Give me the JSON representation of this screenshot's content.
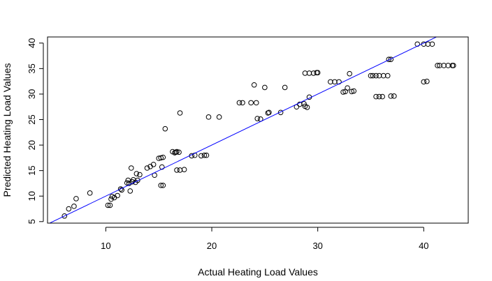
{
  "chart_data": {
    "type": "scatter",
    "title": "",
    "xlabel": "Actual Heating Load Values",
    "ylabel": "Predicted Heating Load Values",
    "xlim": [
      4.5,
      44.2
    ],
    "ylim": [
      4.7,
      41.2
    ],
    "xticks": [
      10,
      20,
      30,
      40
    ],
    "yticks": [
      5,
      10,
      15,
      20,
      25,
      30,
      35,
      40
    ],
    "xtick_labels": [
      "10",
      "20",
      "30",
      "40"
    ],
    "ytick_labels": [
      "5",
      "10",
      "15",
      "20",
      "25",
      "30",
      "35",
      "40"
    ],
    "grid": false,
    "marker": "open-circle",
    "point_color": "#000000",
    "reference_line": {
      "type": "y=x",
      "color": "#0000ff"
    },
    "series": [
      {
        "points": [
          [
            6.1,
            6.1
          ],
          [
            6.5,
            7.5
          ],
          [
            7.0,
            8.0
          ],
          [
            7.2,
            9.5
          ],
          [
            8.5,
            10.6
          ],
          [
            10.2,
            8.2
          ],
          [
            10.4,
            8.2
          ],
          [
            10.5,
            9.4
          ],
          [
            10.6,
            9.9
          ],
          [
            10.8,
            9.7
          ],
          [
            11.1,
            10.1
          ],
          [
            11.4,
            11.4
          ],
          [
            11.5,
            11.2
          ],
          [
            12.0,
            12.6
          ],
          [
            12.1,
            13.1
          ],
          [
            12.2,
            12.5
          ],
          [
            12.3,
            11.0
          ],
          [
            12.4,
            15.5
          ],
          [
            12.5,
            12.8
          ],
          [
            12.6,
            13.2
          ],
          [
            12.8,
            12.7
          ],
          [
            12.9,
            14.4
          ],
          [
            13.0,
            13.1
          ],
          [
            13.2,
            14.2
          ],
          [
            13.9,
            15.5
          ],
          [
            14.2,
            15.8
          ],
          [
            14.5,
            16.2
          ],
          [
            14.6,
            14.1
          ],
          [
            15.0,
            17.4
          ],
          [
            15.2,
            17.5
          ],
          [
            15.3,
            15.7
          ],
          [
            15.4,
            17.6
          ],
          [
            15.2,
            12.1
          ],
          [
            15.4,
            12.1
          ],
          [
            15.6,
            23.2
          ],
          [
            16.3,
            18.7
          ],
          [
            16.5,
            18.5
          ],
          [
            16.6,
            18.6
          ],
          [
            16.7,
            18.7
          ],
          [
            16.9,
            18.6
          ],
          [
            16.7,
            15.1
          ],
          [
            17.0,
            15.1
          ],
          [
            17.4,
            15.2
          ],
          [
            17.0,
            26.3
          ],
          [
            18.1,
            17.9
          ],
          [
            18.4,
            18.0
          ],
          [
            19.0,
            17.9
          ],
          [
            19.3,
            18.0
          ],
          [
            19.5,
            18.0
          ],
          [
            19.7,
            25.5
          ],
          [
            20.7,
            25.5
          ],
          [
            22.6,
            28.3
          ],
          [
            22.9,
            28.3
          ],
          [
            23.7,
            28.3
          ],
          [
            24.2,
            28.3
          ],
          [
            24.0,
            31.8
          ],
          [
            24.3,
            25.2
          ],
          [
            24.6,
            25.1
          ],
          [
            25.0,
            31.3
          ],
          [
            25.3,
            26.3
          ],
          [
            25.4,
            26.4
          ],
          [
            26.5,
            26.4
          ],
          [
            26.9,
            31.3
          ],
          [
            28.0,
            27.5
          ],
          [
            28.3,
            28.0
          ],
          [
            28.7,
            28.1
          ],
          [
            28.8,
            27.6
          ],
          [
            29.0,
            27.4
          ],
          [
            29.2,
            29.4
          ],
          [
            28.8,
            34.1
          ],
          [
            29.2,
            34.1
          ],
          [
            29.6,
            34.1
          ],
          [
            29.9,
            34.2
          ],
          [
            30.0,
            34.2
          ],
          [
            31.2,
            32.4
          ],
          [
            31.6,
            32.4
          ],
          [
            32.0,
            32.4
          ],
          [
            32.4,
            30.4
          ],
          [
            32.6,
            30.5
          ],
          [
            32.8,
            31.2
          ],
          [
            33.0,
            34.0
          ],
          [
            33.2,
            30.5
          ],
          [
            33.4,
            30.6
          ],
          [
            35.0,
            33.6
          ],
          [
            35.2,
            33.6
          ],
          [
            35.5,
            33.6
          ],
          [
            35.8,
            33.6
          ],
          [
            36.2,
            33.6
          ],
          [
            36.6,
            33.6
          ],
          [
            35.5,
            29.5
          ],
          [
            35.8,
            29.5
          ],
          [
            36.1,
            29.5
          ],
          [
            36.7,
            36.8
          ],
          [
            36.9,
            36.8
          ],
          [
            36.9,
            29.6
          ],
          [
            37.2,
            29.6
          ],
          [
            39.4,
            39.8
          ],
          [
            40.0,
            39.8
          ],
          [
            40.4,
            39.8
          ],
          [
            40.8,
            39.8
          ],
          [
            40.0,
            32.4
          ],
          [
            40.3,
            32.5
          ],
          [
            41.3,
            35.6
          ],
          [
            41.5,
            35.6
          ],
          [
            41.9,
            35.6
          ],
          [
            42.3,
            35.6
          ],
          [
            42.7,
            35.6
          ],
          [
            42.8,
            35.6
          ]
        ]
      }
    ]
  }
}
